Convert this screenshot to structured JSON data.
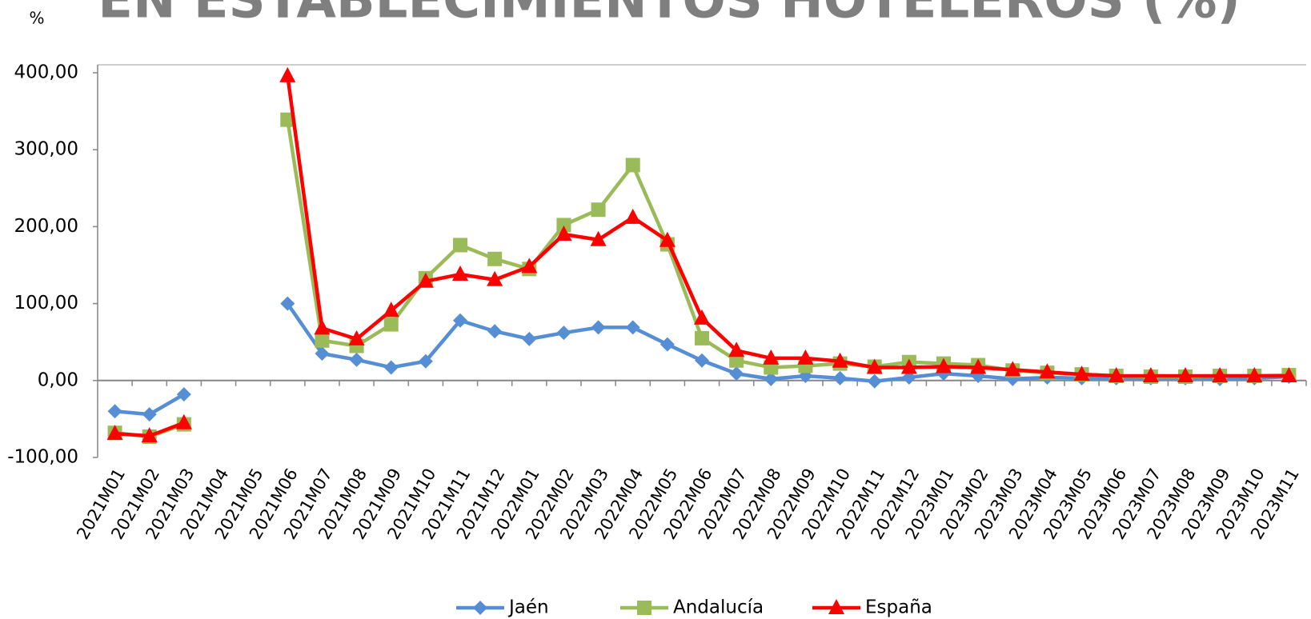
{
  "chart_data": {
    "type": "line",
    "title": "EN ESTABLECIMIENTOS HOTELEROS (%)",
    "y_label": "%",
    "categories": [
      "2021M01",
      "2021M02",
      "2021M03",
      "2021M04",
      "2021M05",
      "2021M06",
      "2021M07",
      "2021M08",
      "2021M09",
      "2021M10",
      "2021M11",
      "2021M12",
      "2022M01",
      "2022M02",
      "2022M03",
      "2022M04",
      "2022M05",
      "2022M06",
      "2022M07",
      "2022M08",
      "2022M09",
      "2022M10",
      "2022M11",
      "2022M12",
      "2023M01",
      "2023M02",
      "2023M03",
      "2023M04",
      "2023M05",
      "2023M06",
      "2023M07",
      "2023M08",
      "2023M09",
      "2023M10",
      "2023M11"
    ],
    "series": [
      {
        "name": "Jaén",
        "color": "#558ed5",
        "marker": "diamond",
        "values": [
          -40,
          -44,
          -18,
          null,
          null,
          100,
          35,
          27,
          17,
          25,
          78,
          64,
          54,
          62,
          69,
          69,
          47,
          26,
          9,
          2,
          6,
          3,
          -1,
          4,
          9,
          6,
          2,
          4,
          3,
          3,
          3,
          3,
          2,
          3,
          5
        ]
      },
      {
        "name": "Andalucía",
        "color": "#9bbb59",
        "marker": "square",
        "values": [
          -68,
          -73,
          -57,
          null,
          null,
          339,
          52,
          45,
          73,
          133,
          176,
          158,
          145,
          202,
          222,
          280,
          177,
          55,
          26,
          17,
          19,
          22,
          18,
          24,
          22,
          20,
          13,
          10,
          8,
          6,
          5,
          5,
          6,
          6,
          7
        ]
      },
      {
        "name": "España",
        "color": "#ff0000",
        "marker": "triangle",
        "values": [
          -69,
          -72,
          -55,
          null,
          null,
          396,
          68,
          54,
          91,
          129,
          138,
          131,
          148,
          190,
          183,
          212,
          182,
          81,
          39,
          29,
          29,
          25,
          17,
          17,
          18,
          17,
          14,
          11,
          8,
          6,
          6,
          6,
          6,
          6,
          6
        ]
      }
    ],
    "ylim": [
      -100,
      400
    ],
    "yticks": [
      {
        "value": -100,
        "label": "-100,00"
      },
      {
        "value": 0,
        "label": "0,00"
      },
      {
        "value": 100,
        "label": "100,00"
      },
      {
        "value": 200,
        "label": "200,00"
      },
      {
        "value": 300,
        "label": "300,00"
      },
      {
        "value": 400,
        "label": "400,00"
      }
    ],
    "grid": false,
    "legend": "bottom"
  }
}
